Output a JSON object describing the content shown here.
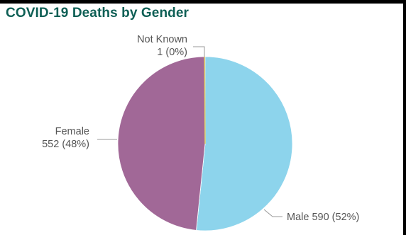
{
  "chart_data": {
    "type": "pie",
    "title": "COVID-19 Deaths by Gender",
    "slices": [
      {
        "name": "Male",
        "value": 590,
        "percent_label": "52%",
        "color": "#8dd4ec"
      },
      {
        "name": "Female",
        "value": 552,
        "percent_label": "48%",
        "color": "#a16897"
      },
      {
        "name": "Not Known",
        "value": 1,
        "percent_label": "0%",
        "color": "#e6d36a"
      }
    ],
    "labels": {
      "male": "Male 590 (52%)",
      "female_name": "Female",
      "female_value": "552 (48%)",
      "notknown_name": "Not Known",
      "notknown_value": "1 (0%)"
    },
    "legend": "none"
  }
}
